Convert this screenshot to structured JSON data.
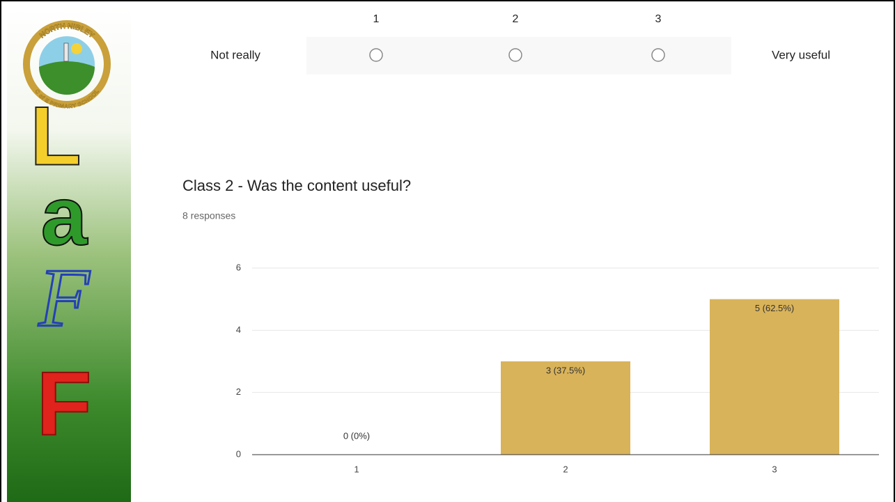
{
  "sidebar": {
    "logo_top": "NORTH NIBLEY",
    "logo_bottom": "C of E PRIMARY SCHOOL",
    "letters": [
      "L",
      "a",
      "F",
      "F"
    ]
  },
  "scale_question": {
    "labels": [
      "1",
      "2",
      "3"
    ],
    "low_label": "Not really",
    "high_label": "Very useful"
  },
  "chart_data": {
    "type": "bar",
    "title": "Class 2 - Was the content useful?",
    "subtitle": "8 responses",
    "categories": [
      "1",
      "2",
      "3"
    ],
    "values": [
      0,
      3,
      5
    ],
    "value_labels": [
      "0 (0%)",
      "3 (37.5%)",
      "5 (62.5%)"
    ],
    "color": "#d9b35a",
    "ylim": [
      0,
      6
    ],
    "yticks": [
      0,
      2,
      4,
      6
    ],
    "grid": true
  }
}
